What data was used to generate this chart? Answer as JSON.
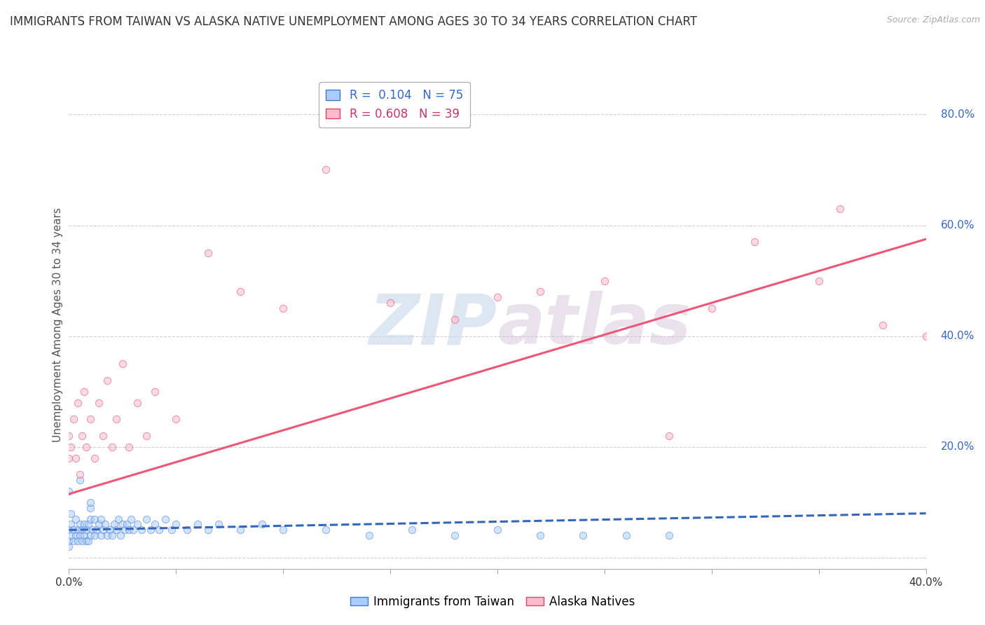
{
  "title": "IMMIGRANTS FROM TAIWAN VS ALASKA NATIVE UNEMPLOYMENT AMONG AGES 30 TO 34 YEARS CORRELATION CHART",
  "source": "Source: ZipAtlas.com",
  "ylabel": "Unemployment Among Ages 30 to 34 years",
  "xlim": [
    0.0,
    0.4
  ],
  "ylim": [
    -0.02,
    0.86
  ],
  "xticks": [
    0.0,
    0.05,
    0.1,
    0.15,
    0.2,
    0.25,
    0.3,
    0.35,
    0.4
  ],
  "yticks_right": [
    0.0,
    0.2,
    0.4,
    0.6,
    0.8
  ],
  "ytick_labels_right": [
    "",
    "20.0%",
    "40.0%",
    "60.0%",
    "80.0%"
  ],
  "grid_color": "#d0d0d0",
  "background_color": "#ffffff",
  "watermark_text": "ZIPatlas",
  "series": [
    {
      "name": "Immigrants from Taiwan",
      "R": 0.104,
      "N": 75,
      "color": "#aaccff",
      "edge_color": "#4477cc",
      "line_color": "#3366bb",
      "line_style": "--",
      "trend_x": [
        0.0,
        0.4
      ],
      "trend_y": [
        0.05,
        0.08
      ],
      "scatter_x": [
        0.0,
        0.0,
        0.0,
        0.001,
        0.001,
        0.001,
        0.002,
        0.002,
        0.003,
        0.003,
        0.004,
        0.004,
        0.005,
        0.005,
        0.006,
        0.006,
        0.007,
        0.007,
        0.008,
        0.008,
        0.009,
        0.009,
        0.01,
        0.01,
        0.01,
        0.011,
        0.012,
        0.012,
        0.013,
        0.014,
        0.015,
        0.015,
        0.016,
        0.017,
        0.018,
        0.019,
        0.02,
        0.021,
        0.022,
        0.023,
        0.024,
        0.025,
        0.026,
        0.027,
        0.028,
        0.029,
        0.03,
        0.032,
        0.034,
        0.036,
        0.038,
        0.04,
        0.042,
        0.045,
        0.048,
        0.05,
        0.055,
        0.06,
        0.065,
        0.07,
        0.08,
        0.09,
        0.1,
        0.12,
        0.14,
        0.16,
        0.18,
        0.2,
        0.22,
        0.24,
        0.26,
        0.28,
        0.0,
        0.005,
        0.01
      ],
      "scatter_y": [
        0.02,
        0.03,
        0.05,
        0.04,
        0.06,
        0.08,
        0.03,
        0.05,
        0.04,
        0.07,
        0.03,
        0.05,
        0.04,
        0.06,
        0.03,
        0.05,
        0.04,
        0.06,
        0.03,
        0.05,
        0.03,
        0.06,
        0.04,
        0.07,
        0.09,
        0.05,
        0.04,
        0.07,
        0.05,
        0.06,
        0.04,
        0.07,
        0.05,
        0.06,
        0.04,
        0.05,
        0.04,
        0.06,
        0.05,
        0.07,
        0.04,
        0.06,
        0.05,
        0.06,
        0.05,
        0.07,
        0.05,
        0.06,
        0.05,
        0.07,
        0.05,
        0.06,
        0.05,
        0.07,
        0.05,
        0.06,
        0.05,
        0.06,
        0.05,
        0.06,
        0.05,
        0.06,
        0.05,
        0.05,
        0.04,
        0.05,
        0.04,
        0.05,
        0.04,
        0.04,
        0.04,
        0.04,
        0.12,
        0.14,
        0.1
      ]
    },
    {
      "name": "Alaska Natives",
      "R": 0.608,
      "N": 39,
      "color": "#ffbbcc",
      "edge_color": "#dd4466",
      "line_color": "#ee5577",
      "line_style": "-",
      "trend_x": [
        0.0,
        0.4
      ],
      "trend_y": [
        0.115,
        0.575
      ],
      "scatter_x": [
        0.0,
        0.0,
        0.001,
        0.002,
        0.003,
        0.004,
        0.005,
        0.006,
        0.007,
        0.008,
        0.01,
        0.012,
        0.014,
        0.016,
        0.018,
        0.02,
        0.022,
        0.025,
        0.028,
        0.032,
        0.036,
        0.04,
        0.05,
        0.065,
        0.08,
        0.1,
        0.12,
        0.15,
        0.18,
        0.2,
        0.22,
        0.25,
        0.28,
        0.3,
        0.32,
        0.35,
        0.36,
        0.38,
        0.4
      ],
      "scatter_y": [
        0.18,
        0.22,
        0.2,
        0.25,
        0.18,
        0.28,
        0.15,
        0.22,
        0.3,
        0.2,
        0.25,
        0.18,
        0.28,
        0.22,
        0.32,
        0.2,
        0.25,
        0.35,
        0.2,
        0.28,
        0.22,
        0.3,
        0.25,
        0.55,
        0.48,
        0.45,
        0.7,
        0.46,
        0.43,
        0.47,
        0.48,
        0.5,
        0.22,
        0.45,
        0.57,
        0.5,
        0.63,
        0.42,
        0.4
      ]
    }
  ],
  "title_fontsize": 12,
  "axis_label_fontsize": 11,
  "tick_fontsize": 11,
  "legend_fontsize": 12,
  "scatter_size": 55,
  "scatter_alpha": 0.55
}
